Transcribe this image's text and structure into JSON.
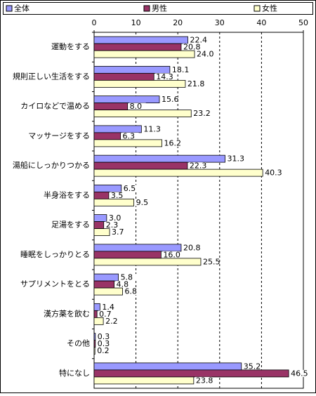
{
  "chart_data": {
    "type": "barh",
    "categories": [
      "運動をする",
      "規則正しい生活をする",
      "カイロなどで温める",
      "マッサージをする",
      "湯船にしっかりつかる",
      "半身浴をする",
      "足湯をする",
      "睡眠をしっかりとる",
      "サプリメントをとる",
      "漢方薬を飲む",
      "その他",
      "特になし"
    ],
    "series": [
      {
        "name": "全体",
        "color": "#9999ff",
        "values": [
          22.4,
          18.1,
          15.6,
          11.3,
          31.3,
          6.5,
          3.0,
          20.8,
          5.8,
          1.4,
          0.3,
          35.2
        ],
        "value_labels": [
          "22.4",
          "18.1",
          "15.6",
          "11.3",
          "31.3",
          "6.5",
          "3.0",
          "20.8",
          "5.8",
          "1.4",
          "0.3",
          "35.2"
        ]
      },
      {
        "name": "男性",
        "color": "#993366",
        "values": [
          20.8,
          14.3,
          8.0,
          6.3,
          22.3,
          3.5,
          2.3,
          16.0,
          4.8,
          0.7,
          0.3,
          46.5
        ],
        "value_labels": [
          "20.8",
          "14.3",
          "8.0",
          "6.3",
          "22.3",
          "3.5",
          "2.3",
          "16.0",
          "4.8",
          "0.7",
          "0.3",
          "46.5"
        ]
      },
      {
        "name": "女性",
        "color": "#ffffcc",
        "values": [
          24.0,
          21.8,
          23.2,
          16.2,
          40.3,
          9.5,
          3.7,
          25.5,
          6.8,
          2.2,
          0.2,
          23.8
        ],
        "value_labels": [
          "24.0",
          "21.8",
          "23.2",
          "16.2",
          "40.3",
          "9.5",
          "3.7",
          "25.5",
          "6.8",
          "2.2",
          "0.2",
          "23.8"
        ]
      }
    ],
    "xlim": [
      0,
      50
    ],
    "xticks": [
      0,
      10,
      20,
      30,
      40,
      50
    ],
    "grid": true
  }
}
